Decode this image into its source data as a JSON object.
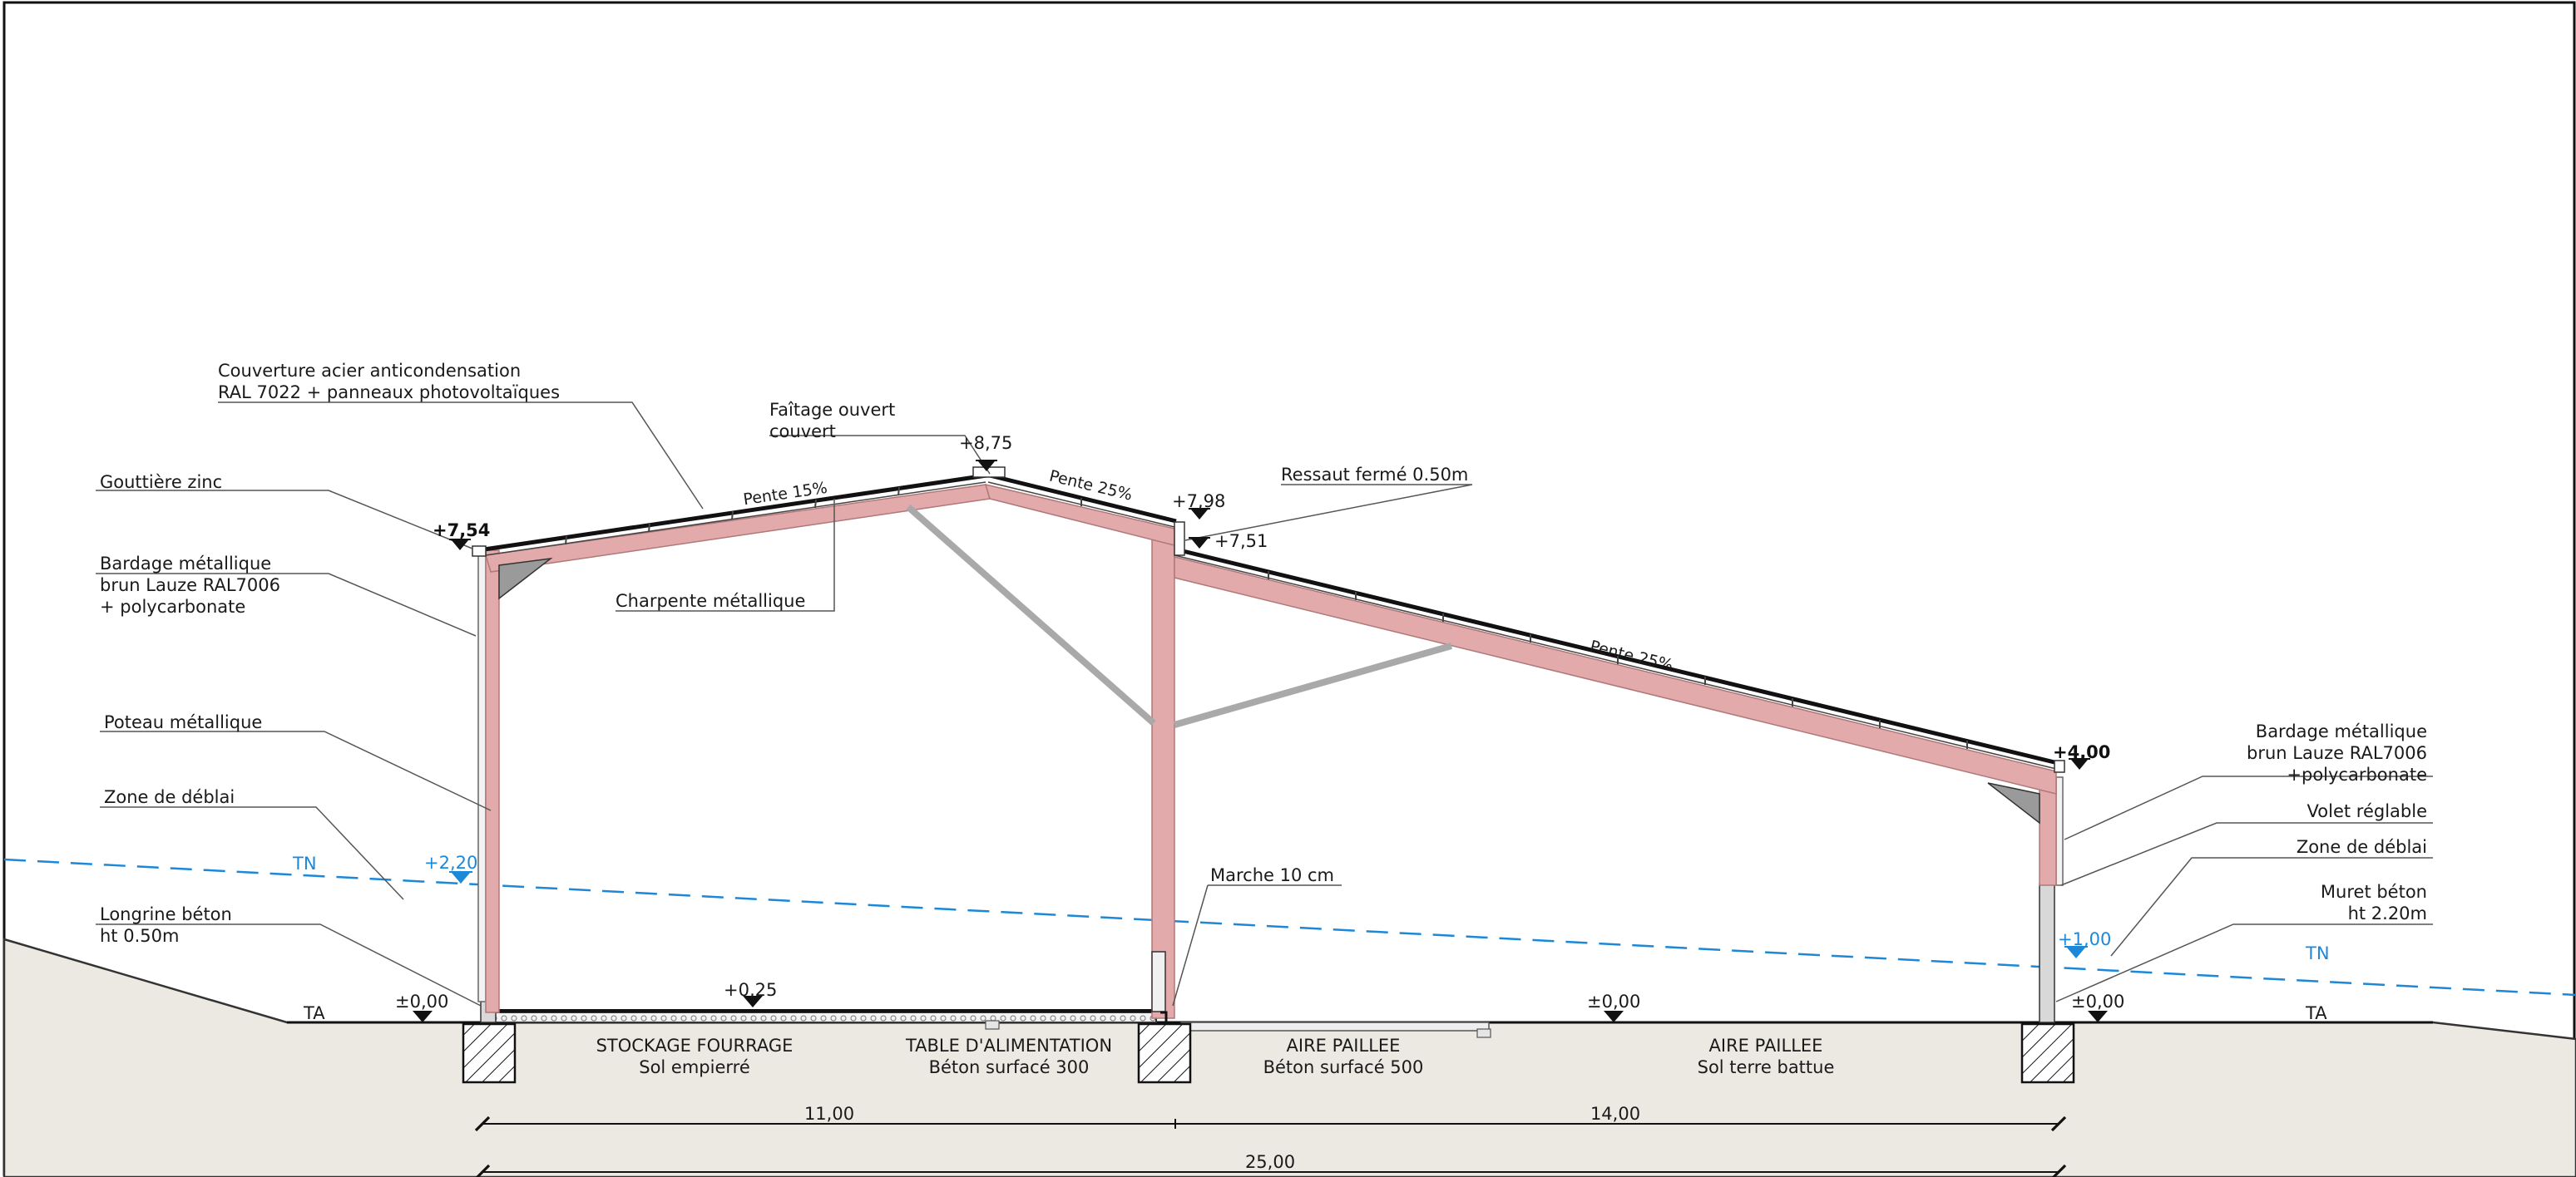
{
  "labels": {
    "couverture_1": "Couverture acier anticondensation",
    "couverture_2": "RAL 7022 + panneaux photovoltaïques",
    "faitage_1": "Faîtage ouvert",
    "faitage_2": "couvert",
    "gouttiere": "Gouttière zinc",
    "ressaut": "Ressaut fermé 0.50m",
    "bardage_left_1": "Bardage métallique",
    "bardage_left_2": "brun Lauze RAL7006",
    "bardage_left_3": "+ polycarbonate",
    "charpente": "Charpente métallique",
    "poteau": "Poteau métallique",
    "deblai_left": "Zone de déblai",
    "longrine_1": "Longrine béton",
    "longrine_2": "ht 0.50m",
    "marche": "Marche 10 cm",
    "bardage_right_1": "Bardage métallique",
    "bardage_right_2": "brun Lauze RAL7006",
    "bardage_right_3": "+polycarbonate",
    "volet": "Volet réglable",
    "deblai_right": "Zone de déblai",
    "muret_1": "Muret béton",
    "muret_2": "ht 2.20m"
  },
  "levels": {
    "eave_left": "+7,54",
    "ridge": "+8,75",
    "step_top": "+7,98",
    "step_bottom": "+7,51",
    "eave_right": "+4,00",
    "floor_left": "±0,00",
    "floor_feed": "+0,25",
    "floor_mid": "±0,00",
    "floor_right": "±0,00",
    "tn_left": "+2,20",
    "tn_right": "+1,00",
    "tn_label_left": "TN",
    "tn_label_right": "TN",
    "ta_left": "TA",
    "ta_right": "TA"
  },
  "slopes": {
    "left": "Pente 15%",
    "mid": "Pente 25%",
    "right": "Pente 25%"
  },
  "zones": [
    {
      "name": "STOCKAGE FOURRAGE",
      "sub": "Sol empierré"
    },
    {
      "name": "TABLE D'ALIMENTATION",
      "sub": "Béton surfacé 300"
    },
    {
      "name": "AIRE PAILLEE",
      "sub": "Béton surfacé 500"
    },
    {
      "name": "AIRE PAILLEE",
      "sub": "Sol terre battue"
    }
  ],
  "dimensions": {
    "span_left": "11,00",
    "span_right": "14,00",
    "total": "25,00"
  },
  "colors": {
    "frame": "#e2aaaa",
    "frame_stroke": "#b07878",
    "ground": "#ece9e2",
    "tn_line": "#1e88d8",
    "brace": "#a9a9a9"
  }
}
